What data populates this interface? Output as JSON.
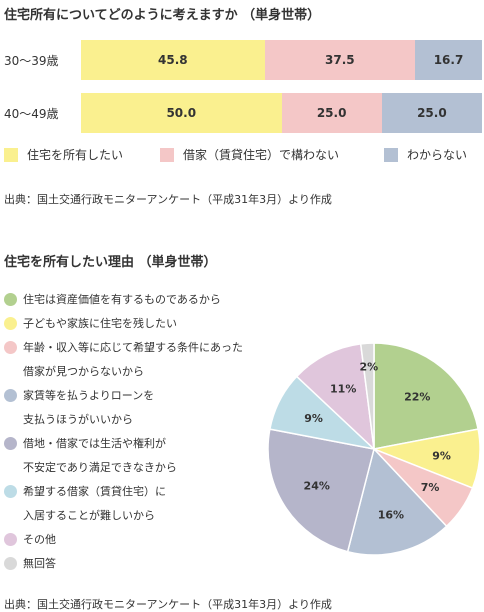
{
  "chart_data": [
    {
      "type": "bar",
      "stacked": true,
      "orientation": "horizontal",
      "title": "住宅所有についてどのように考えますか （単身世帯）",
      "categories": [
        "30〜39歳",
        "40〜49歳"
      ],
      "series": [
        {
          "name": "住宅を所有したい",
          "values": [
            45.8,
            50.0
          ],
          "labels": [
            "45.8",
            "50.0"
          ],
          "color": "#faf08f"
        },
        {
          "name": "借家（賃貸住宅）で構わない",
          "values": [
            37.5,
            25.0
          ],
          "labels": [
            "37.5",
            "25.0"
          ],
          "color": "#f4c7c7"
        },
        {
          "name": "わからない",
          "values": [
            16.7,
            25.0
          ],
          "labels": [
            "16.7",
            "25.0"
          ],
          "color": "#b3c0d3"
        }
      ],
      "source": "出典：国土交通行政モニターアンケート（平成31年3月）より作成"
    },
    {
      "type": "pie",
      "title": "住宅を所有したい理由 （単身世帯）",
      "slices": [
        {
          "name": "住宅は資産価値を有するものであるから",
          "value": 22,
          "label": "22%",
          "color": "#b2d08f"
        },
        {
          "name": "子どもや家族に住宅を残したい",
          "value": 9,
          "label": "9%",
          "color": "#faf08f"
        },
        {
          "name": "年齢・収入等に応じて希望する条件にあった借家が見つからないから",
          "value": 7,
          "label": "7%",
          "color": "#f4c7c7"
        },
        {
          "name": "家賃等を払うよりローンを支払うほうがいいから",
          "value": 16,
          "label": "16%",
          "color": "#b3c0d3"
        },
        {
          "name": "借地・借家では生活や権利が不安定であり満足できなきから",
          "value": 24,
          "label": "24%",
          "color": "#b5b5ca"
        },
        {
          "name": "希望する借家（賃貸住宅）に入居することが難しいから",
          "value": 9,
          "label": "9%",
          "color": "#bddce6"
        },
        {
          "name": "その他",
          "value": 11,
          "label": "11%",
          "color": "#e0c6dc"
        },
        {
          "name": "無回答",
          "value": 2,
          "label": "2%",
          "color": "#d9d9d9"
        }
      ],
      "legend_lines": [
        [
          "住宅は資産価値を有するものであるから"
        ],
        [
          "子どもや家族に住宅を残したい"
        ],
        [
          "年齢・収入等に応じて希望する条件にあった",
          "借家が見つからないから"
        ],
        [
          "家賃等を払うよりローンを",
          "支払うほうがいいから"
        ],
        [
          "借地・借家では生活や権利が",
          "不安定であり満足できなきから"
        ],
        [
          "希望する借家（賃貸住宅）に",
          "入居することが難しいから"
        ],
        [
          "その他"
        ],
        [
          "無回答"
        ]
      ],
      "source": "出典：国土交通行政モニターアンケート（平成31年3月）より作成"
    }
  ]
}
